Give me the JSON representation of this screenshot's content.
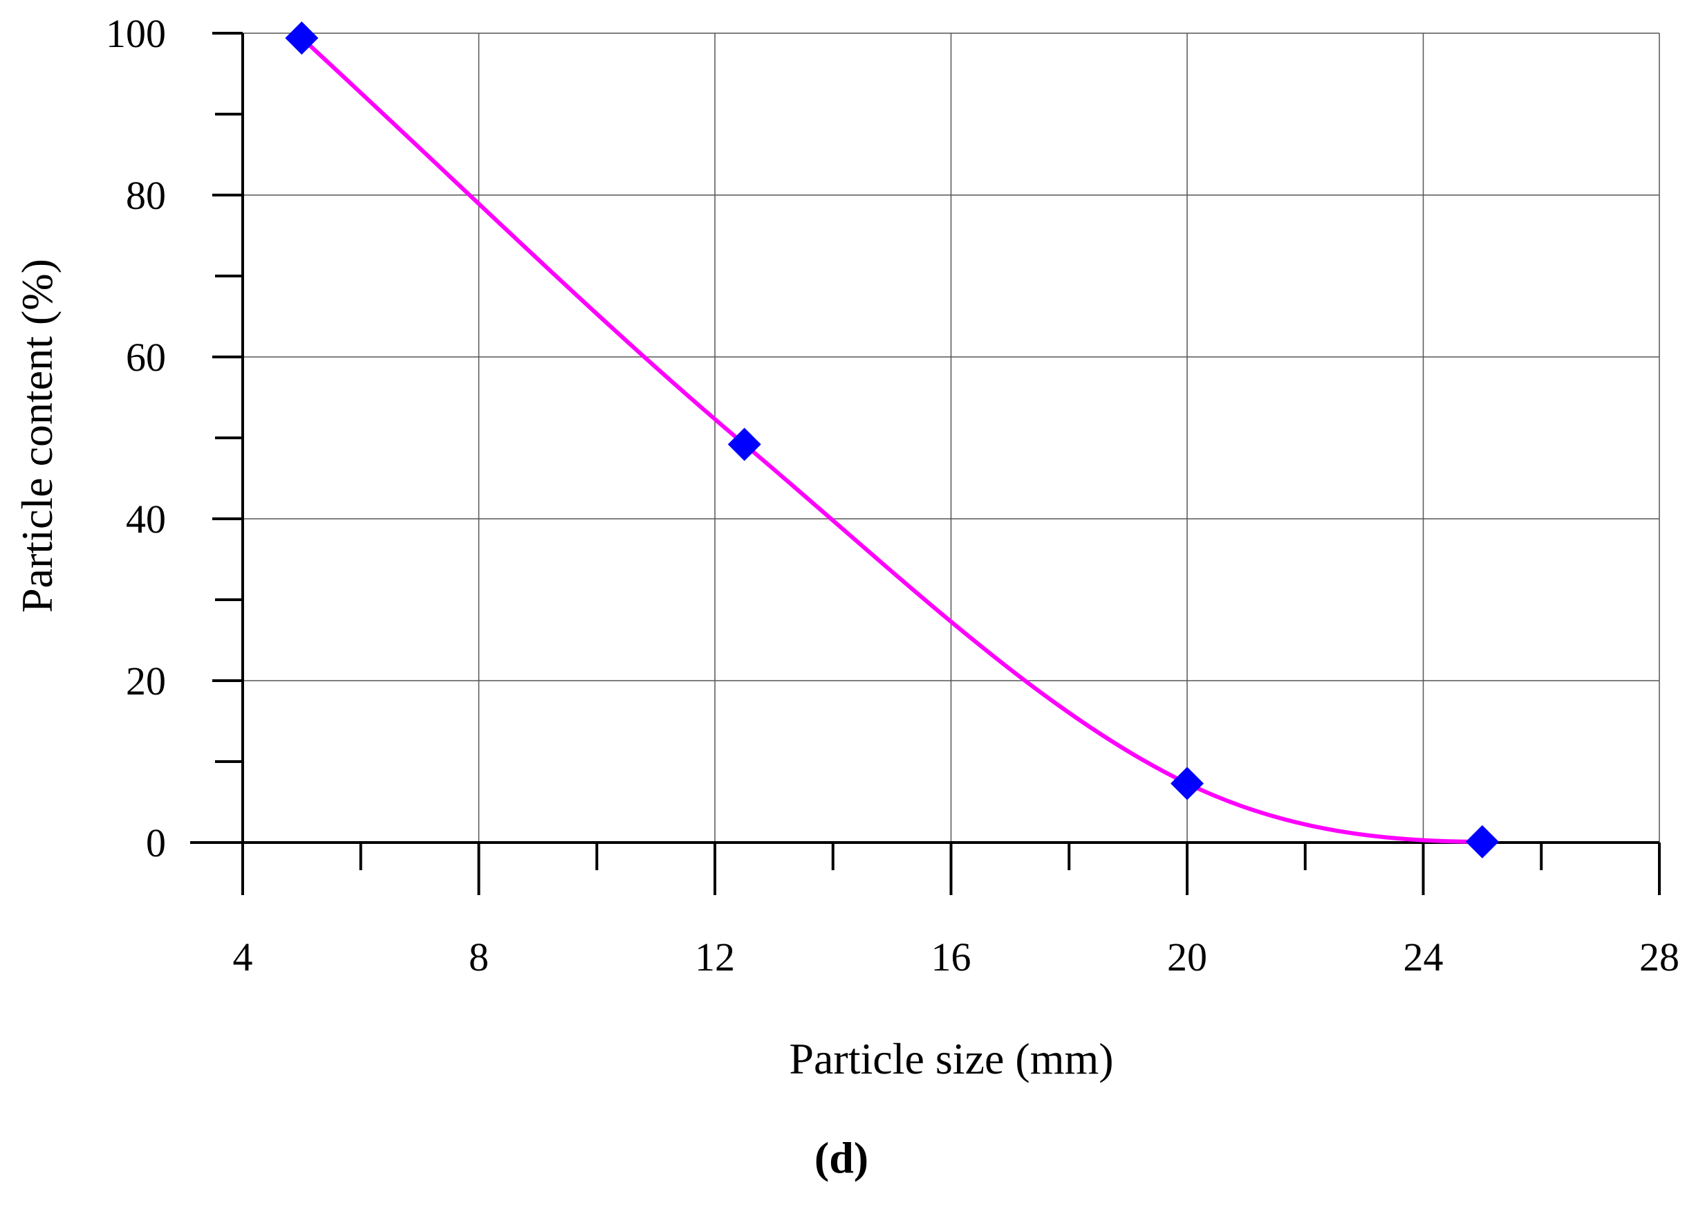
{
  "chart_data": {
    "type": "line",
    "title": "",
    "xlabel": "Particle size (mm)",
    "ylabel": "Particle content (%)",
    "panel_label": "(d)",
    "xlim": [
      4,
      28
    ],
    "ylim": [
      0,
      100
    ],
    "x_ticks": [
      4,
      8,
      12,
      16,
      20,
      24,
      28
    ],
    "y_ticks": [
      0,
      20,
      40,
      60,
      80,
      100
    ],
    "grid": true,
    "legend": "none",
    "series": [
      {
        "x": [
          5,
          12.5,
          20,
          25
        ],
        "y": [
          99.4,
          49.2,
          7.3,
          0.1
        ],
        "marker": "diamond",
        "marker_color": "#0000ff",
        "line": "smooth curve",
        "line_color": "#ff00ff"
      }
    ]
  }
}
